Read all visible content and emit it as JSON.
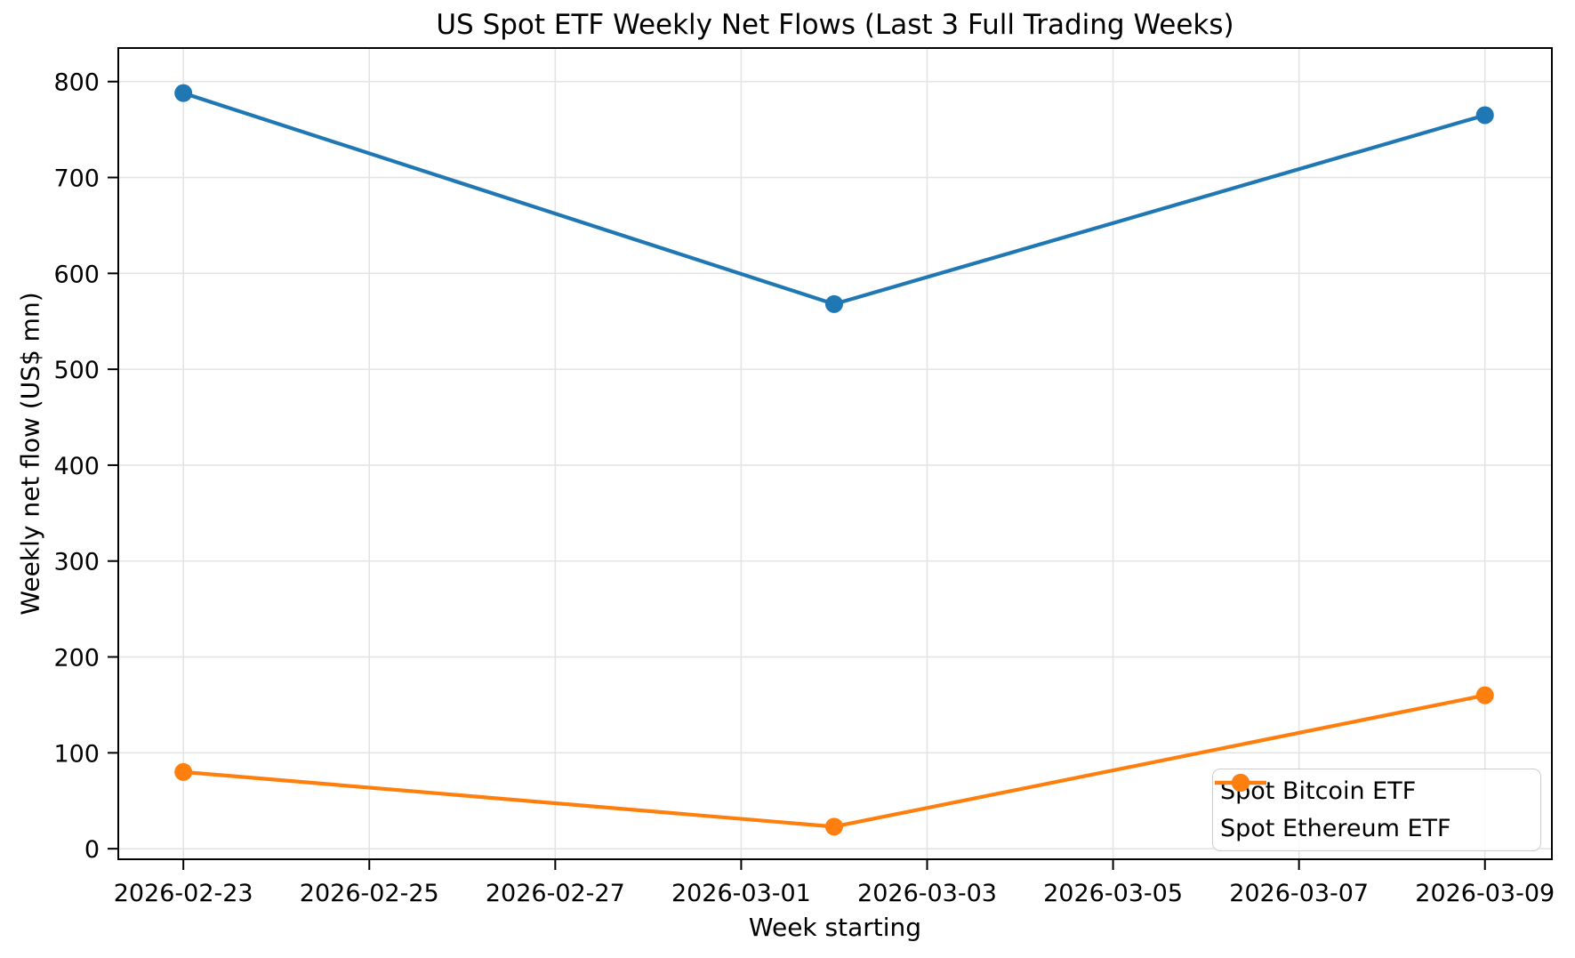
{
  "chart_data": {
    "type": "line",
    "title": "US Spot ETF Weekly Net Flows (Last 3 Full Trading Weeks)",
    "xlabel": "Week starting",
    "ylabel": "Weekly net flow (US$ mn)",
    "x": [
      "2026-02-23",
      "2026-03-02",
      "2026-03-09"
    ],
    "x_days": [
      0,
      7,
      14
    ],
    "series": [
      {
        "name": "Spot Bitcoin ETF",
        "color": "#1f77b4",
        "values": [
          788,
          568,
          765
        ]
      },
      {
        "name": "Spot Ethereum ETF",
        "color": "#ff7f0e",
        "values": [
          80,
          23,
          160
        ]
      }
    ],
    "x_tick_labels": [
      "2026-02-23",
      "2026-02-25",
      "2026-02-27",
      "2026-03-01",
      "2026-03-03",
      "2026-03-05",
      "2026-03-07",
      "2026-03-09"
    ],
    "x_tick_days": [
      0,
      2,
      4,
      6,
      8,
      10,
      12,
      14
    ],
    "y_ticks": [
      0,
      100,
      200,
      300,
      400,
      500,
      600,
      700,
      800
    ],
    "xlim_days": [
      -0.7,
      14.72
    ],
    "ylim": [
      -11,
      835
    ],
    "grid": true,
    "legend_position": "lower right"
  },
  "colors": {
    "series_bitcoin": "#1f77b4",
    "series_ethereum": "#ff7f0e",
    "gridline": "#e4e4e4",
    "spine": "#000000",
    "legend_border": "#cccccc"
  }
}
